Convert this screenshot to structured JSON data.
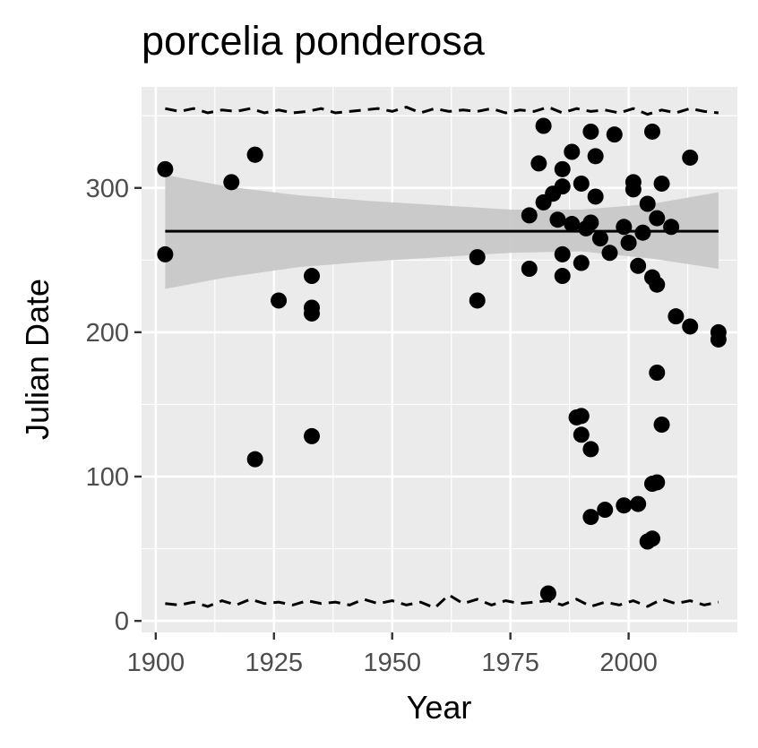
{
  "chart_data": {
    "type": "scatter",
    "title": "porcelia ponderosa",
    "xlabel": "Year",
    "ylabel": "Julian Date",
    "xlim": [
      1897,
      2023
    ],
    "ylim": [
      -8,
      370
    ],
    "x_ticks": [
      1900,
      1925,
      1950,
      1975,
      2000
    ],
    "y_ticks": [
      0,
      100,
      200,
      300
    ],
    "grid": true,
    "background": "#ebebeb",
    "grid_color": "#ffffff",
    "point_color": "#000000",
    "band_color": "#c8c8c8",
    "points": [
      [
        1902,
        313
      ],
      [
        1902,
        254
      ],
      [
        1916,
        304
      ],
      [
        1921,
        323
      ],
      [
        1921,
        323
      ],
      [
        1921,
        112
      ],
      [
        1926,
        222
      ],
      [
        1933,
        239
      ],
      [
        1933,
        217
      ],
      [
        1933,
        213
      ],
      [
        1933,
        128
      ],
      [
        1968,
        252
      ],
      [
        1968,
        222
      ],
      [
        1979,
        281
      ],
      [
        1979,
        244
      ],
      [
        1981,
        317
      ],
      [
        1982,
        290
      ],
      [
        1982,
        343
      ],
      [
        1983,
        19
      ],
      [
        1984,
        296
      ],
      [
        1985,
        278
      ],
      [
        1986,
        313
      ],
      [
        1986,
        301
      ],
      [
        1986,
        254
      ],
      [
        1986,
        239
      ],
      [
        1988,
        325
      ],
      [
        1988,
        275
      ],
      [
        1989,
        141
      ],
      [
        1990,
        142
      ],
      [
        1990,
        129
      ],
      [
        1990,
        248
      ],
      [
        1990,
        303
      ],
      [
        1991,
        272
      ],
      [
        1992,
        339
      ],
      [
        1992,
        276
      ],
      [
        1992,
        119
      ],
      [
        1992,
        72
      ],
      [
        1993,
        322
      ],
      [
        1993,
        294
      ],
      [
        1994,
        265
      ],
      [
        1995,
        77
      ],
      [
        1996,
        255
      ],
      [
        1997,
        337
      ],
      [
        1999,
        273
      ],
      [
        1999,
        80
      ],
      [
        2000,
        262
      ],
      [
        2001,
        304
      ],
      [
        2001,
        299
      ],
      [
        2002,
        246
      ],
      [
        2002,
        81
      ],
      [
        2003,
        269
      ],
      [
        2004,
        289
      ],
      [
        2004,
        55
      ],
      [
        2005,
        339
      ],
      [
        2005,
        238
      ],
      [
        2005,
        95
      ],
      [
        2005,
        57
      ],
      [
        2006,
        279
      ],
      [
        2006,
        233
      ],
      [
        2006,
        172
      ],
      [
        2006,
        96
      ],
      [
        2007,
        303
      ],
      [
        2007,
        136
      ],
      [
        2009,
        273
      ],
      [
        2010,
        211
      ],
      [
        2013,
        321
      ],
      [
        2013,
        204
      ],
      [
        2019,
        200
      ],
      [
        2019,
        195
      ]
    ],
    "fit_line": {
      "x": [
        1902,
        2019
      ],
      "y": [
        270,
        270
      ]
    },
    "confidence_band": {
      "x": [
        1902,
        1915,
        1930,
        1945,
        1960,
        1975,
        1990,
        2005,
        2019
      ],
      "upper": [
        309,
        301,
        295,
        291,
        288,
        285,
        285,
        289,
        297
      ],
      "lower": [
        230,
        238,
        245,
        249,
        252,
        255,
        256,
        251,
        244
      ]
    },
    "upper_quantile_line": {
      "x": [
        1902,
        1905,
        1908,
        1911,
        1914,
        1917,
        1920,
        1923,
        1926,
        1929,
        1932,
        1935,
        1938,
        1941,
        1944,
        1947,
        1950,
        1953,
        1956,
        1959,
        1962,
        1965,
        1968,
        1971,
        1974,
        1977,
        1980,
        1983,
        1986,
        1989,
        1992,
        1995,
        1998,
        2001,
        2004,
        2007,
        2010,
        2013,
        2016,
        2019
      ],
      "y": [
        355,
        353,
        355,
        352,
        354,
        353,
        355,
        352,
        354,
        352,
        353,
        355,
        352,
        353,
        354,
        355,
        353,
        356,
        352,
        355,
        353,
        354,
        353,
        355,
        352,
        354,
        353,
        356,
        352,
        355,
        353,
        354,
        352,
        355,
        351,
        354,
        352,
        355,
        353,
        352
      ]
    },
    "lower_quantile_line": {
      "x": [
        1902,
        1905,
        1908,
        1911,
        1914,
        1917,
        1920,
        1923,
        1926,
        1929,
        1932,
        1935,
        1938,
        1941,
        1944,
        1947,
        1950,
        1953,
        1956,
        1959,
        1962,
        1965,
        1968,
        1971,
        1974,
        1977,
        1980,
        1983,
        1986,
        1989,
        1992,
        1995,
        1998,
        2001,
        2004,
        2007,
        2010,
        2013,
        2016,
        2019
      ],
      "y": [
        12,
        11,
        13,
        10,
        14,
        11,
        15,
        12,
        13,
        11,
        14,
        12,
        13,
        11,
        15,
        12,
        14,
        11,
        13,
        9,
        18,
        12,
        15,
        11,
        14,
        12,
        13,
        14,
        11,
        15,
        10,
        13,
        11,
        14,
        10,
        15,
        12,
        14,
        11,
        13
      ]
    }
  }
}
